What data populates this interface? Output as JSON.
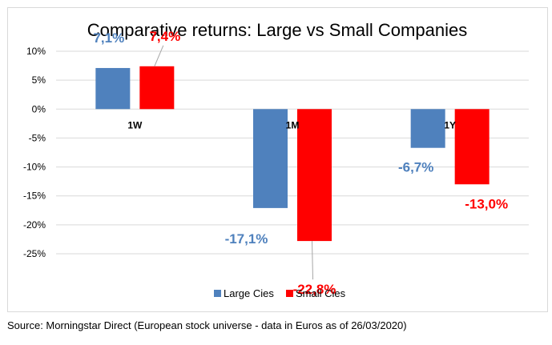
{
  "chart_data": {
    "type": "bar",
    "title": "Comparative returns: Large vs Small Companies",
    "xlabel": "",
    "ylabel": "",
    "categories": [
      "1W",
      "1M",
      "1Y"
    ],
    "series": [
      {
        "name": "Large Cies",
        "color": "#4f81bd",
        "values": [
          7.1,
          -17.1,
          -6.7
        ],
        "labels": [
          "7,1%",
          "-17,1%",
          "-6,7%"
        ]
      },
      {
        "name": "Small Cies",
        "color": "#ff0000",
        "values": [
          7.4,
          -22.8,
          -13.0
        ],
        "labels": [
          "7,4%",
          "-22,8%",
          "-13,0%"
        ]
      }
    ],
    "ylim": [
      -25,
      10
    ],
    "yticks": [
      10,
      5,
      0,
      -5,
      -10,
      -15,
      -20,
      -25
    ],
    "ytick_labels": [
      "10%",
      "5%",
      "0%",
      "-5%",
      "-10%",
      "-15%",
      "-20%",
      "-25%"
    ],
    "grid": true,
    "legend": "bottom"
  },
  "source": "Source: Morningstar Direct (European stock universe - data in Euros as of 26/03/2020)"
}
